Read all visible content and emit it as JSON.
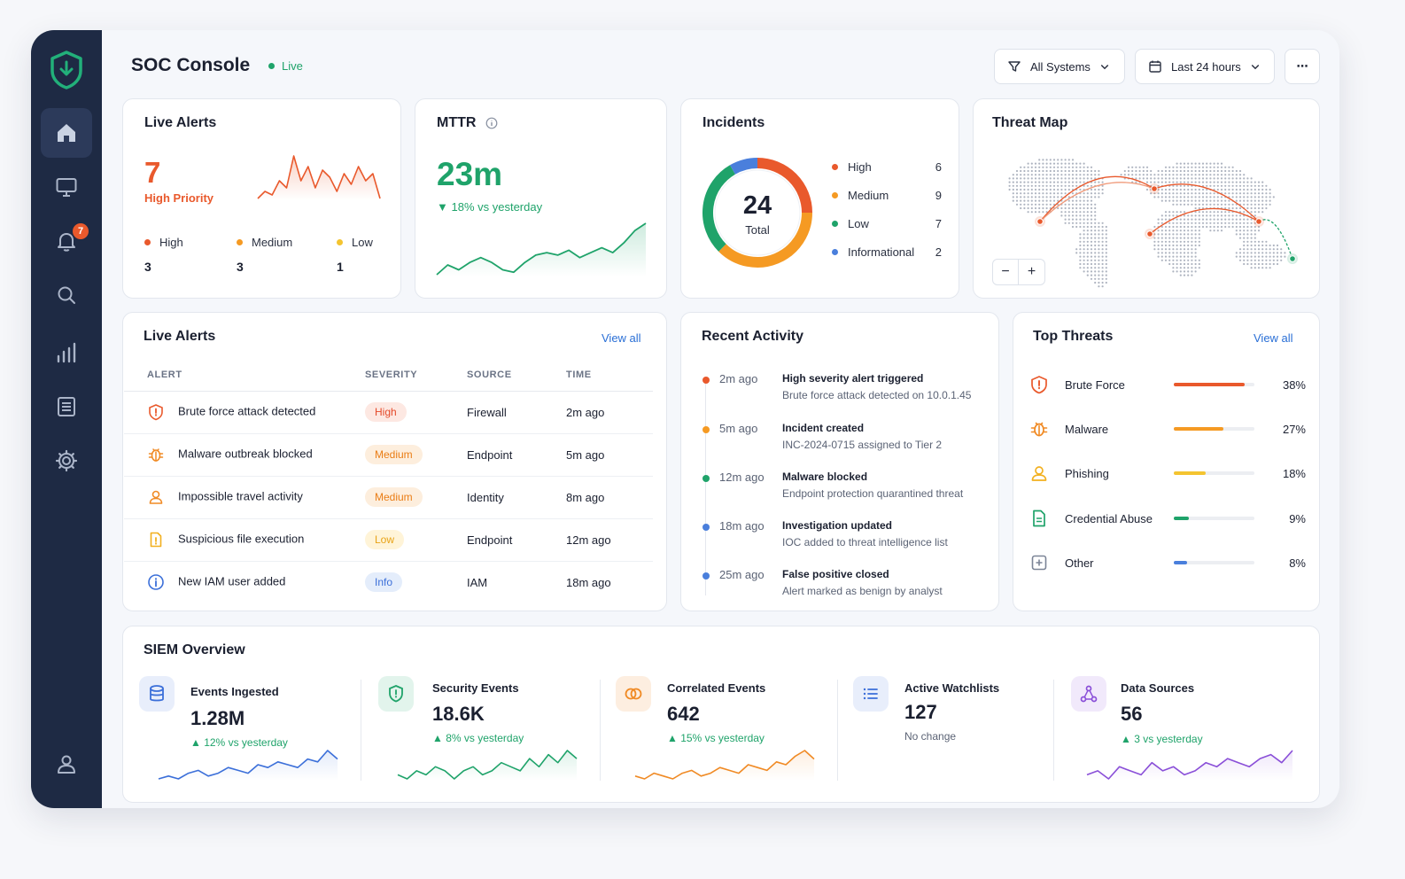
{
  "header": {
    "title": "SOC Console",
    "live_label": "Live",
    "filter_systems": "All Systems",
    "filter_time": "Last 24 hours",
    "more_label": "⋯"
  },
  "sidebar": {
    "notification_badge": "7",
    "items": [
      "home-icon",
      "monitor-icon",
      "bell-icon",
      "search-icon",
      "analytics-icon",
      "report-icon",
      "gear-icon",
      "user-icon"
    ]
  },
  "live_alerts_summary": {
    "title": "Live Alerts",
    "count": "7",
    "label": "High Priority",
    "legend": [
      {
        "label": "High",
        "value": "3",
        "color": "#e9592c"
      },
      {
        "label": "Medium",
        "value": "3",
        "color": "#f59a23"
      },
      {
        "label": "Low",
        "value": "1",
        "color": "#f4c430"
      }
    ],
    "sparkline": [
      4,
      6,
      5,
      9,
      7,
      16,
      9,
      13,
      7,
      12,
      10,
      6,
      11,
      8,
      13,
      9,
      11,
      4
    ]
  },
  "mttr": {
    "title": "MTTR",
    "value": "23m",
    "delta": "▼ 18% vs yesterday",
    "sparkline": [
      3,
      7,
      5,
      8,
      10,
      8,
      5,
      4,
      8,
      11,
      12,
      11,
      13,
      10,
      12,
      14,
      12,
      16,
      21,
      24
    ]
  },
  "incidents": {
    "title": "Incidents",
    "total": "24",
    "total_label": "Total",
    "items": [
      {
        "label": "High",
        "value": "6",
        "color": "#e9592c"
      },
      {
        "label": "Medium",
        "value": "9",
        "color": "#f59a23"
      },
      {
        "label": "Low",
        "value": "7",
        "color": "#1fa36a"
      },
      {
        "label": "Informational",
        "value": "2",
        "color": "#4a7fdc"
      }
    ]
  },
  "threat_map": {
    "title": "Threat Map",
    "zoom_out": "−",
    "zoom_in": "+"
  },
  "alerts_table": {
    "title": "Live Alerts",
    "view_all": "View all",
    "columns": [
      "ALERT",
      "SEVERITY",
      "SOURCE",
      "TIME"
    ],
    "rows": [
      {
        "alert": "Brute force attack detected",
        "severity": "High",
        "source": "Firewall",
        "time": "2m ago",
        "icon": "shield-alert-icon"
      },
      {
        "alert": "Malware outbreak blocked",
        "severity": "Medium",
        "source": "Endpoint",
        "time": "5m ago",
        "icon": "bug-icon"
      },
      {
        "alert": "Impossible travel activity",
        "severity": "Medium",
        "source": "Identity",
        "time": "8m ago",
        "icon": "user-travel-icon"
      },
      {
        "alert": "Suspicious file execution",
        "severity": "Low",
        "source": "Endpoint",
        "time": "12m ago",
        "icon": "file-warning-icon"
      },
      {
        "alert": "New IAM user added",
        "severity": "Info",
        "source": "IAM",
        "time": "18m ago",
        "icon": "info-icon"
      }
    ]
  },
  "recent_activity": {
    "title": "Recent Activity",
    "items": [
      {
        "time": "2m ago",
        "title": "High severity alert triggered",
        "desc": "Brute force attack detected on 10.0.1.45",
        "color": "#e9592c"
      },
      {
        "time": "5m ago",
        "title": "Incident created",
        "desc": "INC-2024-0715 assigned to Tier 2",
        "color": "#f59a23"
      },
      {
        "time": "12m ago",
        "title": "Malware blocked",
        "desc": "Endpoint protection quarantined threat",
        "color": "#1fa36a"
      },
      {
        "time": "18m ago",
        "title": "Investigation updated",
        "desc": "IOC added to threat intelligence list",
        "color": "#4a7fdc"
      },
      {
        "time": "25m ago",
        "title": "False positive closed",
        "desc": "Alert marked as benign by analyst",
        "color": "#4a7fdc"
      }
    ]
  },
  "top_threats": {
    "title": "Top Threats",
    "view_all": "View all",
    "items": [
      {
        "name": "Brute Force",
        "pct": "38%",
        "fraction": 0.88,
        "color": "#e9592c",
        "icon": "shield-alert-icon"
      },
      {
        "name": "Malware",
        "pct": "27%",
        "fraction": 0.62,
        "color": "#f59a23",
        "icon": "bug-icon"
      },
      {
        "name": "Phishing",
        "pct": "18%",
        "fraction": 0.4,
        "color": "#f4c430",
        "icon": "phishing-icon"
      },
      {
        "name": "Credential Abuse",
        "pct": "9%",
        "fraction": 0.19,
        "color": "#1fa36a",
        "icon": "file-key-icon"
      },
      {
        "name": "Other",
        "pct": "8%",
        "fraction": 0.17,
        "color": "#4a7fdc",
        "icon": "plus-box-icon"
      }
    ]
  },
  "siem": {
    "title": "SIEM Overview",
    "metrics": [
      {
        "label": "Events Ingested",
        "value": "1.28M",
        "delta": "▲ 12% vs yesterday",
        "color": "#3b6fd9",
        "icon": "database-icon",
        "sparkline": [
          3,
          4,
          3,
          5,
          6,
          4,
          5,
          7,
          6,
          5,
          8,
          7,
          9,
          8,
          7,
          10,
          9,
          13,
          10
        ]
      },
      {
        "label": "Security Events",
        "value": "18.6K",
        "delta": "▲ 8% vs yesterday",
        "color": "#1fa36a",
        "icon": "shield-icon",
        "sparkline": [
          5,
          4,
          6,
          5,
          7,
          6,
          4,
          6,
          7,
          5,
          6,
          8,
          7,
          6,
          9,
          7,
          10,
          8,
          11,
          9
        ]
      },
      {
        "label": "Correlated Events",
        "value": "642",
        "delta": "▲ 15% vs yesterday",
        "color": "#f08a24",
        "icon": "link-icon",
        "sparkline": [
          4,
          3,
          5,
          4,
          3,
          5,
          6,
          4,
          5,
          7,
          6,
          5,
          8,
          7,
          6,
          9,
          8,
          11,
          13,
          10
        ]
      },
      {
        "label": "Active Watchlists",
        "value": "127",
        "delta": "No change",
        "color": "#3b6fd9",
        "icon": "list-icon"
      },
      {
        "label": "Data Sources",
        "value": "56",
        "delta": "▲ 3 vs yesterday",
        "color": "#8a4fd8",
        "icon": "nodes-icon",
        "sparkline": [
          5,
          6,
          4,
          7,
          6,
          5,
          8,
          6,
          7,
          5,
          6,
          8,
          7,
          9,
          8,
          7,
          9,
          10,
          8,
          11
        ]
      }
    ]
  }
}
